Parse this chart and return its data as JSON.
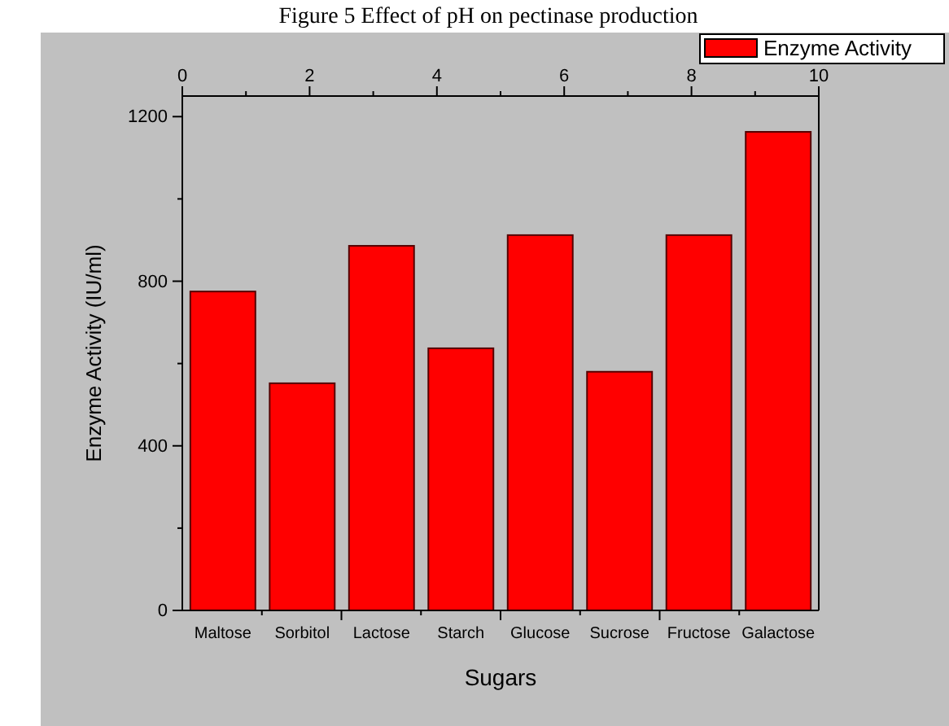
{
  "chart_data": {
    "type": "bar",
    "title": "Figure 5 Effect of pH on pectinase production",
    "xlabel": "Sugars",
    "ylabel": "Enzyme Activity (IU/ml)",
    "categories": [
      "Maltose",
      "Sorbitol",
      "Lactose",
      "Starch",
      "Glucose",
      "Sucrose",
      "Fructose",
      "Galactose"
    ],
    "series": [
      {
        "name": "Enzyme Activity",
        "color": "#ff0000",
        "values": [
          775,
          552,
          886,
          637,
          912,
          580,
          912,
          1163
        ]
      }
    ],
    "ylim": [
      0,
      1250
    ],
    "yticks": [
      0,
      400,
      800,
      1200
    ],
    "x2lim": [
      0,
      10
    ],
    "x2ticks": [
      0,
      2,
      4,
      6,
      8,
      10
    ],
    "legend": "top right",
    "grid": false
  }
}
